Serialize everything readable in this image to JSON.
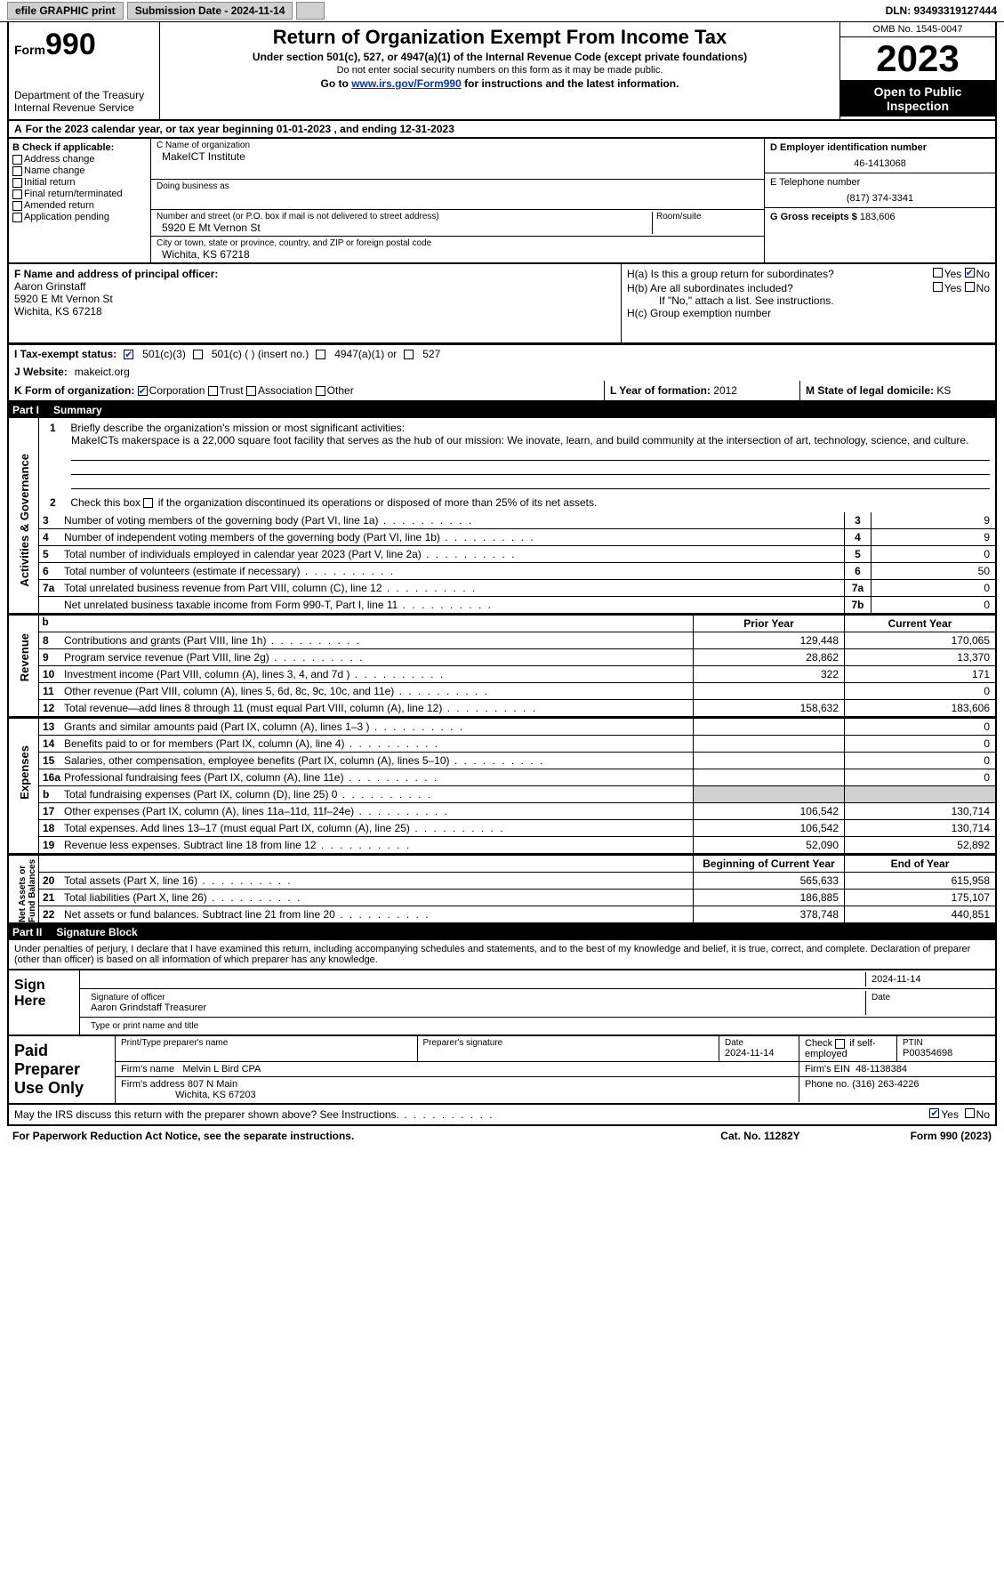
{
  "topbar": {
    "efile": "efile GRAPHIC print",
    "submission": "Submission Date - 2024-11-14",
    "dln": "DLN: 93493319127444"
  },
  "header": {
    "form_prefix": "Form",
    "form_number": "990",
    "dept": "Department of the Treasury",
    "irs": "Internal Revenue Service",
    "title": "Return of Organization Exempt From Income Tax",
    "sub": "Under section 501(c), 527, or 4947(a)(1) of the Internal Revenue Code (except private foundations)",
    "sub2": "Do not enter social security numbers on this form as it may be made public.",
    "goto": "Go to ",
    "goto_link": "www.irs.gov/Form990",
    "goto_after": " for instructions and the latest information.",
    "omb": "OMB No. 1545-0047",
    "year": "2023",
    "inspect": "Open to Public Inspection"
  },
  "lineA": {
    "label": "A",
    "text": "For the 2023 calendar year, or tax year beginning 01-01-2023   , and ending 12-31-2023"
  },
  "B": {
    "label": "B Check if applicable:",
    "addr_change": "Address change",
    "name_change": "Name change",
    "initial": "Initial return",
    "final": "Final return/terminated",
    "amended": "Amended return",
    "app_pending": "Application pending"
  },
  "C": {
    "name_lab": "C Name of organization",
    "name": "MakeICT Institute",
    "dba_lab": "Doing business as",
    "street_lab": "Number and street (or P.O. box if mail is not delivered to street address)",
    "street": "5920 E Mt Vernon St",
    "room_lab": "Room/suite",
    "city_lab": "City or town, state or province, country, and ZIP or foreign postal code",
    "city": "Wichita, KS  67218"
  },
  "D": {
    "ein_lab": "D Employer identification number",
    "ein": "46-1413068",
    "phone_lab": "E Telephone number",
    "phone": "(817) 374-3341",
    "gross_lab": "G Gross receipts $",
    "gross": "183,606"
  },
  "F": {
    "lab": "F  Name and address of principal officer:",
    "name": "Aaron Grinstaff",
    "addr1": "5920 E Mt Vernon St",
    "addr2": "Wichita, KS  67218"
  },
  "H": {
    "a": "H(a)  Is this a group return for subordinates?",
    "b": "H(b)  Are all subordinates included?",
    "b_note": "If \"No,\" attach a list. See instructions.",
    "c": "H(c)  Group exemption number",
    "yes": "Yes",
    "no": "No"
  },
  "I": {
    "lab": "I   Tax-exempt status:",
    "o1": "501(c)(3)",
    "o2": "501(c) (  ) (insert no.)",
    "o3": "4947(a)(1) or",
    "o4": "527"
  },
  "J": {
    "lab": "J   Website:",
    "val": "makeict.org"
  },
  "K": {
    "lab": "K Form of organization:",
    "corp": "Corporation",
    "trust": "Trust",
    "assoc": "Association",
    "other": "Other"
  },
  "L": {
    "lab": "L Year of formation:",
    "val": "2012"
  },
  "M": {
    "lab": "M State of legal domicile:",
    "val": "KS"
  },
  "part1": {
    "lab": "Part I",
    "title": "Summary"
  },
  "summary": {
    "q1_lab": "1",
    "q1": "Briefly describe the organization's mission or most significant activities:",
    "q1_text": "MakeICTs makerspace is a 22,000 square foot facility that serves as the hub of our mission: We inovate, learn, and build community at the intersection of art, technology, science, and culture.",
    "q2_lab": "2",
    "q2": "Check this box        if the organization discontinued its operations or disposed of more than 25% of its net assets.",
    "lines": [
      {
        "n": "3",
        "txt": "Number of voting members of the governing body (Part VI, line 1a)",
        "bn": "3",
        "v": "9"
      },
      {
        "n": "4",
        "txt": "Number of independent voting members of the governing body (Part VI, line 1b)",
        "bn": "4",
        "v": "9"
      },
      {
        "n": "5",
        "txt": "Total number of individuals employed in calendar year 2023 (Part V, line 2a)",
        "bn": "5",
        "v": "0"
      },
      {
        "n": "6",
        "txt": "Total number of volunteers (estimate if necessary)",
        "bn": "6",
        "v": "50"
      },
      {
        "n": "7a",
        "txt": "Total unrelated business revenue from Part VIII, column (C), line 12",
        "bn": "7a",
        "v": "0"
      },
      {
        "n": "",
        "txt": "Net unrelated business taxable income from Form 990-T, Part I, line 11",
        "bn": "7b",
        "v": "0"
      }
    ],
    "v_act": "Activities & Governance",
    "v_rev": "Revenue",
    "v_exp": "Expenses",
    "v_net": "Net Assets or Fund Balances",
    "hdr_prior": "Prior Year",
    "hdr_curr": "Current Year",
    "revenue": [
      {
        "n": "8",
        "txt": "Contributions and grants (Part VIII, line 1h)",
        "p": "129,448",
        "c": "170,065"
      },
      {
        "n": "9",
        "txt": "Program service revenue (Part VIII, line 2g)",
        "p": "28,862",
        "c": "13,370"
      },
      {
        "n": "10",
        "txt": "Investment income (Part VIII, column (A), lines 3, 4, and 7d )",
        "p": "322",
        "c": "171"
      },
      {
        "n": "11",
        "txt": "Other revenue (Part VIII, column (A), lines 5, 6d, 8c, 9c, 10c, and 11e)",
        "p": "",
        "c": "0"
      },
      {
        "n": "12",
        "txt": "Total revenue—add lines 8 through 11 (must equal Part VIII, column (A), line 12)",
        "p": "158,632",
        "c": "183,606"
      }
    ],
    "expenses": [
      {
        "n": "13",
        "txt": "Grants and similar amounts paid (Part IX, column (A), lines 1–3 )",
        "p": "",
        "c": "0"
      },
      {
        "n": "14",
        "txt": "Benefits paid to or for members (Part IX, column (A), line 4)",
        "p": "",
        "c": "0"
      },
      {
        "n": "15",
        "txt": "Salaries, other compensation, employee benefits (Part IX, column (A), lines 5–10)",
        "p": "",
        "c": "0"
      },
      {
        "n": "16a",
        "txt": "Professional fundraising fees (Part IX, column (A), line 11e)",
        "p": "",
        "c": "0"
      },
      {
        "n": "b",
        "txt": "Total fundraising expenses (Part IX, column (D), line 25) 0",
        "p": "grey",
        "c": "grey"
      },
      {
        "n": "17",
        "txt": "Other expenses (Part IX, column (A), lines 11a–11d, 11f–24e)",
        "p": "106,542",
        "c": "130,714"
      },
      {
        "n": "18",
        "txt": "Total expenses. Add lines 13–17 (must equal Part IX, column (A), line 25)",
        "p": "106,542",
        "c": "130,714"
      },
      {
        "n": "19",
        "txt": "Revenue less expenses. Subtract line 18 from line 12",
        "p": "52,090",
        "c": "52,892"
      }
    ],
    "hdr_begin": "Beginning of Current Year",
    "hdr_end": "End of Year",
    "netassets": [
      {
        "n": "20",
        "txt": "Total assets (Part X, line 16)",
        "p": "565,633",
        "c": "615,958"
      },
      {
        "n": "21",
        "txt": "Total liabilities (Part X, line 26)",
        "p": "186,885",
        "c": "175,107"
      },
      {
        "n": "22",
        "txt": "Net assets or fund balances. Subtract line 21 from line 20",
        "p": "378,748",
        "c": "440,851"
      }
    ]
  },
  "part2": {
    "lab": "Part II",
    "title": "Signature Block"
  },
  "perjury": "Under penalties of perjury, I declare that I have examined this return, including accompanying schedules and statements, and to the best of my knowledge and belief, it is true, correct, and complete. Declaration of preparer (other than officer) is based on all information of which preparer has any knowledge.",
  "sign": {
    "lab": "Sign Here",
    "date": "2024-11-14",
    "sig_lab": "Signature of officer",
    "name": "Aaron Grindstaff  Treasurer",
    "type_lab": "Type or print name and title",
    "date_lab": "Date"
  },
  "paid": {
    "lab": "Paid Preparer Use Only",
    "print_lab": "Print/Type preparer's name",
    "sig_lab": "Preparer's signature",
    "date_lab": "Date",
    "date": "2024-11-14",
    "check_lab": "Check",
    "check_if": "if self-employed",
    "ptin_lab": "PTIN",
    "ptin": "P00354698",
    "firm_name_lab": "Firm's name",
    "firm_name": "Melvin L Bird CPA",
    "firm_ein_lab": "Firm's EIN",
    "firm_ein": "48-1138384",
    "firm_addr_lab": "Firm's address",
    "firm_addr1": "807 N Main",
    "firm_addr2": "Wichita, KS  67203",
    "phone_lab": "Phone no.",
    "phone": "(316) 263-4226"
  },
  "footer": {
    "discuss": "May the IRS discuss this return with the preparer shown above? See Instructions.",
    "yes": "Yes",
    "no": "No",
    "paperwork": "For Paperwork Reduction Act Notice, see the separate instructions.",
    "cat": "Cat. No. 11282Y",
    "form": "Form 990 (2023)"
  }
}
